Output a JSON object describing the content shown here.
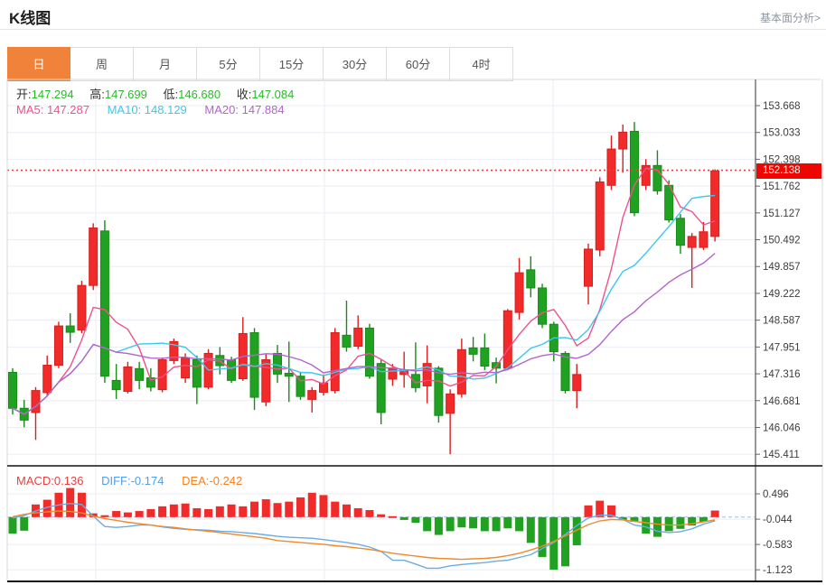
{
  "header": {
    "title": "K线图",
    "link": "基本面分析>"
  },
  "tabs": {
    "items": [
      "日",
      "周",
      "月",
      "5分",
      "15分",
      "30分",
      "60分",
      "4时"
    ],
    "active_index": 0
  },
  "legend": {
    "open_label": "开:",
    "open": "147.294",
    "high_label": "高:",
    "high": "147.699",
    "low_label": "低:",
    "low": "146.680",
    "close_label": "收:",
    "close": "147.084",
    "ma5_label": "MA5:",
    "ma5": "147.287",
    "ma10_label": "MA10:",
    "ma10": "148.129",
    "ma20_label": "MA20:",
    "ma20": "147.884"
  },
  "macd_legend": {
    "macd_label": "MACD:",
    "macd": "0.136",
    "diff_label": "DIFF:",
    "diff": "-0.174",
    "dea_label": "DEA:",
    "dea": "-0.242"
  },
  "price_axis": {
    "ticks": [
      "153.668",
      "153.033",
      "152.398",
      "151.762",
      "151.127",
      "150.492",
      "149.857",
      "149.222",
      "148.587",
      "147.951",
      "147.316",
      "146.681",
      "146.046",
      "145.411"
    ],
    "current": "152.138"
  },
  "macd_axis": {
    "ticks": [
      "0.496",
      "-0.044",
      "-0.583",
      "-1.123"
    ]
  },
  "colors": {
    "up": "#f12a2a",
    "up_border": "#d81f1f",
    "down": "#21a121",
    "down_border": "#178c17",
    "ma5": "#f0508c",
    "ma10": "#3ec6ee",
    "ma20": "#b264cc",
    "diff": "#6aace4",
    "dea": "#f08a2e",
    "tab_active": "#f0823a",
    "badge": "#ee0600",
    "current_line": "#f43b3b",
    "grid": "#e9eef4",
    "border": "#d9d9d9",
    "dark_line": "#111111",
    "zero_dash": "#9cc2dc",
    "ohlc_value": "#2eb82e"
  },
  "chart_data": {
    "type": "candlestick",
    "title": "K线图 (daily K-line with MA5/MA10/MA20 and MACD pane)",
    "legend_position": "top-left",
    "grid": true,
    "price_ticks": [
      153.668,
      153.033,
      152.398,
      151.762,
      151.127,
      150.492,
      149.857,
      149.222,
      148.587,
      147.951,
      147.316,
      146.681,
      146.046,
      145.411
    ],
    "price_range": [
      145.0,
      154.29
    ],
    "current_price": 152.138,
    "ma_periods": [
      5,
      10,
      20
    ],
    "candles_ohlc": [
      [
        147.35,
        147.45,
        146.35,
        146.5
      ],
      [
        146.5,
        146.7,
        146.05,
        146.22
      ],
      [
        146.4,
        147.0,
        145.75,
        146.92
      ],
      [
        146.87,
        147.75,
        146.78,
        147.52
      ],
      [
        147.52,
        148.55,
        147.45,
        148.45
      ],
      [
        148.45,
        148.75,
        148.05,
        148.3
      ],
      [
        148.35,
        149.52,
        148.28,
        149.41
      ],
      [
        149.41,
        150.88,
        149.3,
        150.77
      ],
      [
        150.7,
        150.95,
        147.1,
        147.26
      ],
      [
        147.16,
        147.55,
        146.72,
        146.94
      ],
      [
        146.9,
        147.6,
        146.85,
        147.48
      ],
      [
        147.44,
        147.6,
        146.95,
        147.16
      ],
      [
        147.22,
        147.45,
        146.9,
        147.0
      ],
      [
        146.94,
        147.7,
        146.88,
        147.65
      ],
      [
        147.63,
        148.15,
        147.55,
        148.08
      ],
      [
        147.22,
        147.8,
        147.1,
        147.69
      ],
      [
        147.65,
        147.75,
        146.6,
        147.0
      ],
      [
        147.0,
        147.9,
        146.95,
        147.8
      ],
      [
        147.75,
        147.95,
        147.3,
        147.51
      ],
      [
        147.65,
        147.72,
        147.1,
        147.16
      ],
      [
        147.2,
        148.66,
        147.15,
        148.27
      ],
      [
        148.29,
        148.4,
        146.46,
        146.76
      ],
      [
        146.65,
        147.8,
        146.55,
        147.65
      ],
      [
        147.8,
        148.0,
        147.1,
        147.31
      ],
      [
        147.33,
        148.08,
        146.65,
        147.26
      ],
      [
        147.26,
        147.35,
        146.7,
        146.78
      ],
      [
        146.71,
        147.0,
        146.4,
        146.92
      ],
      [
        146.88,
        147.3,
        146.8,
        147.1
      ],
      [
        146.92,
        148.4,
        146.85,
        148.29
      ],
      [
        148.23,
        149.05,
        147.84,
        147.95
      ],
      [
        147.97,
        148.7,
        147.9,
        148.4
      ],
      [
        148.4,
        148.5,
        147.2,
        147.26
      ],
      [
        147.56,
        147.65,
        146.12,
        146.4
      ],
      [
        147.19,
        147.55,
        147.03,
        147.45
      ],
      [
        147.3,
        147.84,
        146.99,
        147.41
      ],
      [
        147.3,
        148.06,
        146.88,
        146.99
      ],
      [
        147.03,
        147.99,
        146.62,
        147.56
      ],
      [
        147.45,
        147.5,
        146.16,
        146.33
      ],
      [
        146.38,
        146.95,
        145.41,
        146.84
      ],
      [
        146.84,
        148.15,
        146.75,
        147.89
      ],
      [
        147.93,
        148.19,
        147.61,
        147.78
      ],
      [
        147.93,
        148.27,
        147.4,
        147.5
      ],
      [
        147.58,
        147.7,
        147.09,
        147.45
      ],
      [
        147.45,
        148.85,
        147.4,
        148.81
      ],
      [
        148.77,
        150.06,
        148.6,
        149.71
      ],
      [
        149.78,
        150.1,
        149.13,
        149.35
      ],
      [
        149.35,
        149.45,
        148.4,
        148.49
      ],
      [
        148.49,
        148.55,
        147.61,
        147.84
      ],
      [
        147.8,
        147.85,
        146.85,
        146.92
      ],
      [
        146.92,
        147.55,
        146.5,
        147.3
      ],
      [
        149.39,
        150.4,
        148.96,
        150.27
      ],
      [
        150.25,
        151.97,
        150.1,
        151.86
      ],
      [
        151.78,
        152.96,
        151.67,
        152.64
      ],
      [
        152.64,
        153.22,
        152.08,
        153.04
      ],
      [
        153.06,
        153.28,
        151.05,
        151.13
      ],
      [
        151.78,
        152.4,
        151.67,
        152.25
      ],
      [
        152.25,
        152.61,
        151.56,
        151.65
      ],
      [
        151.78,
        151.9,
        150.9,
        150.96
      ],
      [
        151.0,
        151.1,
        150.16,
        150.36
      ],
      [
        150.31,
        150.65,
        149.35,
        150.57
      ],
      [
        150.31,
        150.91,
        150.25,
        150.68
      ],
      [
        150.57,
        152.16,
        150.45,
        152.12
      ]
    ],
    "macd": {
      "ticks": [
        0.496,
        -0.044,
        -0.583,
        -1.123
      ],
      "range": [
        -1.25,
        0.75
      ],
      "histogram": [
        -0.35,
        -0.29,
        0.27,
        0.37,
        0.52,
        0.62,
        0.52,
        0.08,
        0.04,
        0.13,
        0.1,
        0.13,
        0.17,
        0.23,
        0.27,
        0.29,
        0.19,
        0.17,
        0.23,
        0.27,
        0.23,
        0.33,
        0.38,
        0.3,
        0.33,
        0.42,
        0.52,
        0.47,
        0.33,
        0.27,
        0.19,
        0.15,
        0.06,
        0.02,
        -0.06,
        -0.12,
        -0.3,
        -0.38,
        -0.3,
        -0.22,
        -0.24,
        -0.3,
        -0.3,
        -0.24,
        -0.3,
        -0.55,
        -0.85,
        -1.12,
        -1.05,
        -0.6,
        0.25,
        0.35,
        0.25,
        -0.06,
        -0.1,
        -0.35,
        -0.42,
        -0.3,
        -0.25,
        -0.18,
        -0.1,
        0.14
      ],
      "diff": [
        -0.02,
        0.03,
        0.13,
        0.21,
        0.26,
        0.29,
        0.27,
        0.02,
        -0.2,
        -0.22,
        -0.2,
        -0.17,
        -0.17,
        -0.21,
        -0.24,
        -0.26,
        -0.27,
        -0.28,
        -0.3,
        -0.31,
        -0.33,
        -0.35,
        -0.38,
        -0.41,
        -0.43,
        -0.44,
        -0.45,
        -0.48,
        -0.51,
        -0.54,
        -0.58,
        -0.64,
        -0.73,
        -0.92,
        -0.92,
        -1.0,
        -1.09,
        -1.09,
        -1.04,
        -1.01,
        -0.99,
        -0.97,
        -0.94,
        -0.92,
        -0.86,
        -0.8,
        -0.67,
        -0.54,
        -0.37,
        -0.18,
        -0.02,
        0.04,
        0.04,
        -0.05,
        -0.17,
        -0.21,
        -0.3,
        -0.33,
        -0.31,
        -0.25,
        -0.15,
        -0.08
      ],
      "dea": [
        0.01,
        0.06,
        0.09,
        0.11,
        0.13,
        0.12,
        0.09,
        0.02,
        -0.03,
        -0.07,
        -0.11,
        -0.14,
        -0.17,
        -0.2,
        -0.22,
        -0.25,
        -0.28,
        -0.3,
        -0.33,
        -0.36,
        -0.39,
        -0.42,
        -0.45,
        -0.5,
        -0.52,
        -0.54,
        -0.56,
        -0.58,
        -0.61,
        -0.63,
        -0.66,
        -0.69,
        -0.73,
        -0.77,
        -0.8,
        -0.83,
        -0.86,
        -0.88,
        -0.89,
        -0.9,
        -0.89,
        -0.88,
        -0.86,
        -0.82,
        -0.77,
        -0.7,
        -0.62,
        -0.52,
        -0.4,
        -0.28,
        -0.16,
        -0.08,
        -0.05,
        -0.06,
        -0.09,
        -0.12,
        -0.15,
        -0.17,
        -0.17,
        -0.14,
        -0.1,
        -0.06
      ]
    }
  }
}
